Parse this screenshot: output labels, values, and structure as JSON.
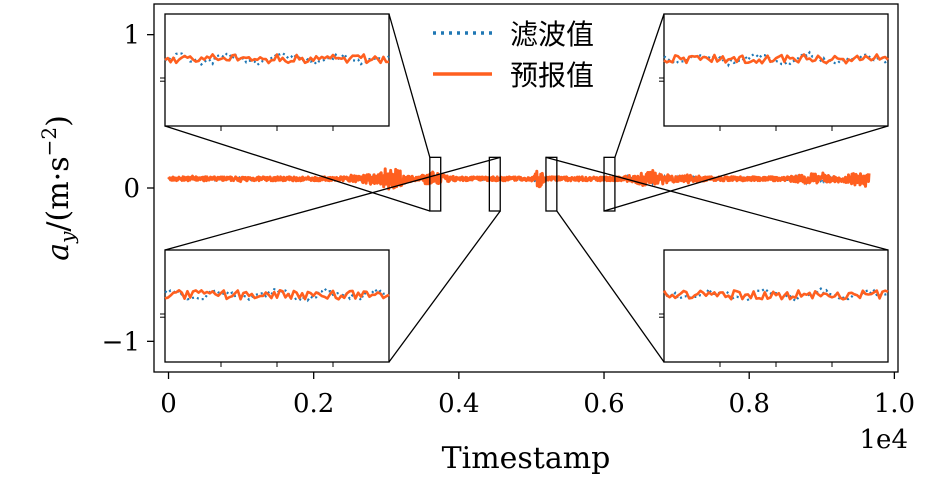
{
  "chart_data": {
    "type": "line",
    "title": "",
    "xlabel": "Timestamp",
    "ylabel": "a_y/(m·s⁻²)",
    "ylabel_parts": {
      "var": "a",
      "sub": "y",
      "unit_open": "/(m·s",
      "exp": "−2",
      "unit_close": ")"
    },
    "x_offset_label": "1e4",
    "xlim": [
      -200,
      10050
    ],
    "ylim": [
      -1.2,
      1.2
    ],
    "x_ticks": [
      0,
      2000,
      4000,
      6000,
      8000,
      10000
    ],
    "x_tick_labels": [
      "0",
      "0.2",
      "0.4",
      "0.6",
      "0.8",
      "1.0"
    ],
    "y_ticks": [
      -1,
      0,
      1
    ],
    "y_tick_labels": [
      "−1",
      "0",
      "1"
    ],
    "legend": {
      "position": "top-center",
      "entries": [
        "滤波值",
        "预报值"
      ]
    },
    "series": [
      {
        "name": "滤波值",
        "style": "dotted",
        "color": "#1f77b4",
        "x_range": [
          0,
          9650
        ],
        "baseline": 0.06
      },
      {
        "name": "预报值",
        "style": "solid",
        "color": "#ff5f1f",
        "x_range": [
          0,
          9650
        ],
        "baseline": 0.06
      }
    ],
    "zoom_windows": [
      {
        "x_range": [
          3600,
          3750
        ],
        "y_range": [
          -0.15,
          0.2
        ],
        "inset": "top-left"
      },
      {
        "x_range": [
          4420,
          4570
        ],
        "y_range": [
          -0.15,
          0.2
        ],
        "inset": "bottom-left"
      },
      {
        "x_range": [
          5200,
          5350
        ],
        "y_range": [
          -0.15,
          0.2
        ],
        "inset": "bottom-right"
      },
      {
        "x_range": [
          6000,
          6150
        ],
        "y_range": [
          -0.15,
          0.2
        ],
        "inset": "top-right"
      }
    ]
  }
}
